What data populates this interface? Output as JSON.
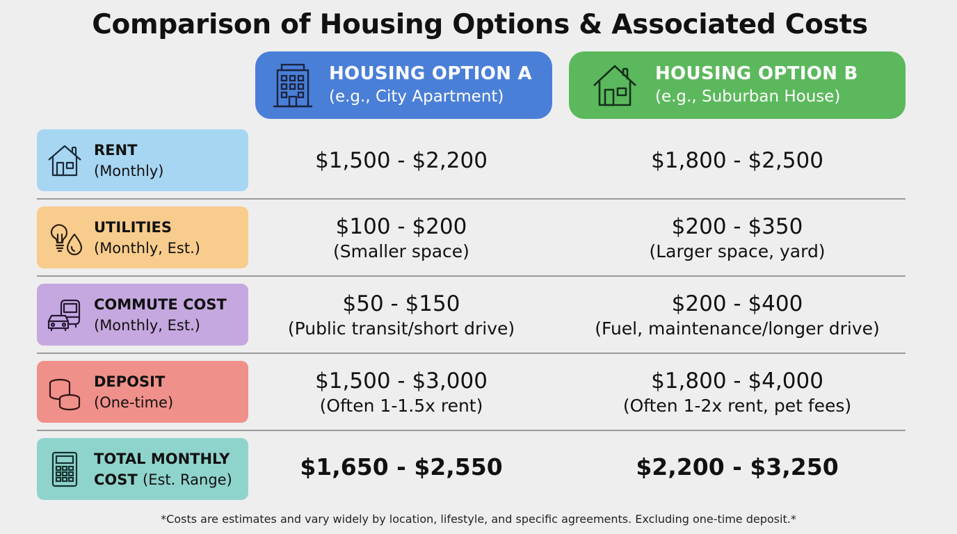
{
  "title": "Comparison of Housing Options & Associated Costs",
  "options": [
    {
      "title": "HOUSING OPTION A",
      "subtitle": "(e.g., City Apartment)",
      "icon": "apartment-building-icon",
      "color": "#4a7fd8"
    },
    {
      "title": "HOUSING OPTION B",
      "subtitle": "(e.g., Suburban House)",
      "icon": "house-icon",
      "color": "#5cb85c"
    }
  ],
  "rows": [
    {
      "label": "RENT",
      "sub": "(Monthly)",
      "icon": "house-outline-icon",
      "color": "#a7d6f2",
      "a": {
        "value": "$1,500 - $2,200",
        "note": ""
      },
      "b": {
        "value": "$1,800 - $2,500",
        "note": ""
      }
    },
    {
      "label": "UTILITIES",
      "sub": "(Monthly, Est.)",
      "icon": "lightbulb-water-drop-icon",
      "color": "#f8cc8c",
      "a": {
        "value": "$100 - $200",
        "note": "(Smaller space)"
      },
      "b": {
        "value": "$200 - $350",
        "note": "(Larger space, yard)"
      }
    },
    {
      "label": "COMMUTE COST",
      "sub": "(Monthly, Est.)",
      "icon": "car-bus-icon",
      "color": "#c6a8e0",
      "a": {
        "value": "$50 - $150",
        "note": "(Public transit/short drive)"
      },
      "b": {
        "value": "$200 - $400",
        "note": "(Fuel, maintenance/longer drive)"
      }
    },
    {
      "label": "DEPOSIT",
      "sub": "(One-time)",
      "icon": "coins-icon",
      "color": "#f0908a",
      "a": {
        "value": "$1,500 - $3,000",
        "note": "(Often 1-1.5x rent)"
      },
      "b": {
        "value": "$1,800 - $4,000",
        "note": "(Often 1-2x rent, pet fees)"
      }
    },
    {
      "label": "TOTAL MONTHLY",
      "label2": "COST",
      "sub": "(Est. Range)",
      "icon": "calculator-icon",
      "color": "#8fd4cc",
      "a": {
        "value": "$1,650 - $2,550",
        "note": ""
      },
      "b": {
        "value": "$2,200 - $3,250",
        "note": ""
      }
    }
  ],
  "footnote": "*Costs are estimates and vary widely by location, lifestyle, and specific agreements. Excluding one-time deposit.*"
}
